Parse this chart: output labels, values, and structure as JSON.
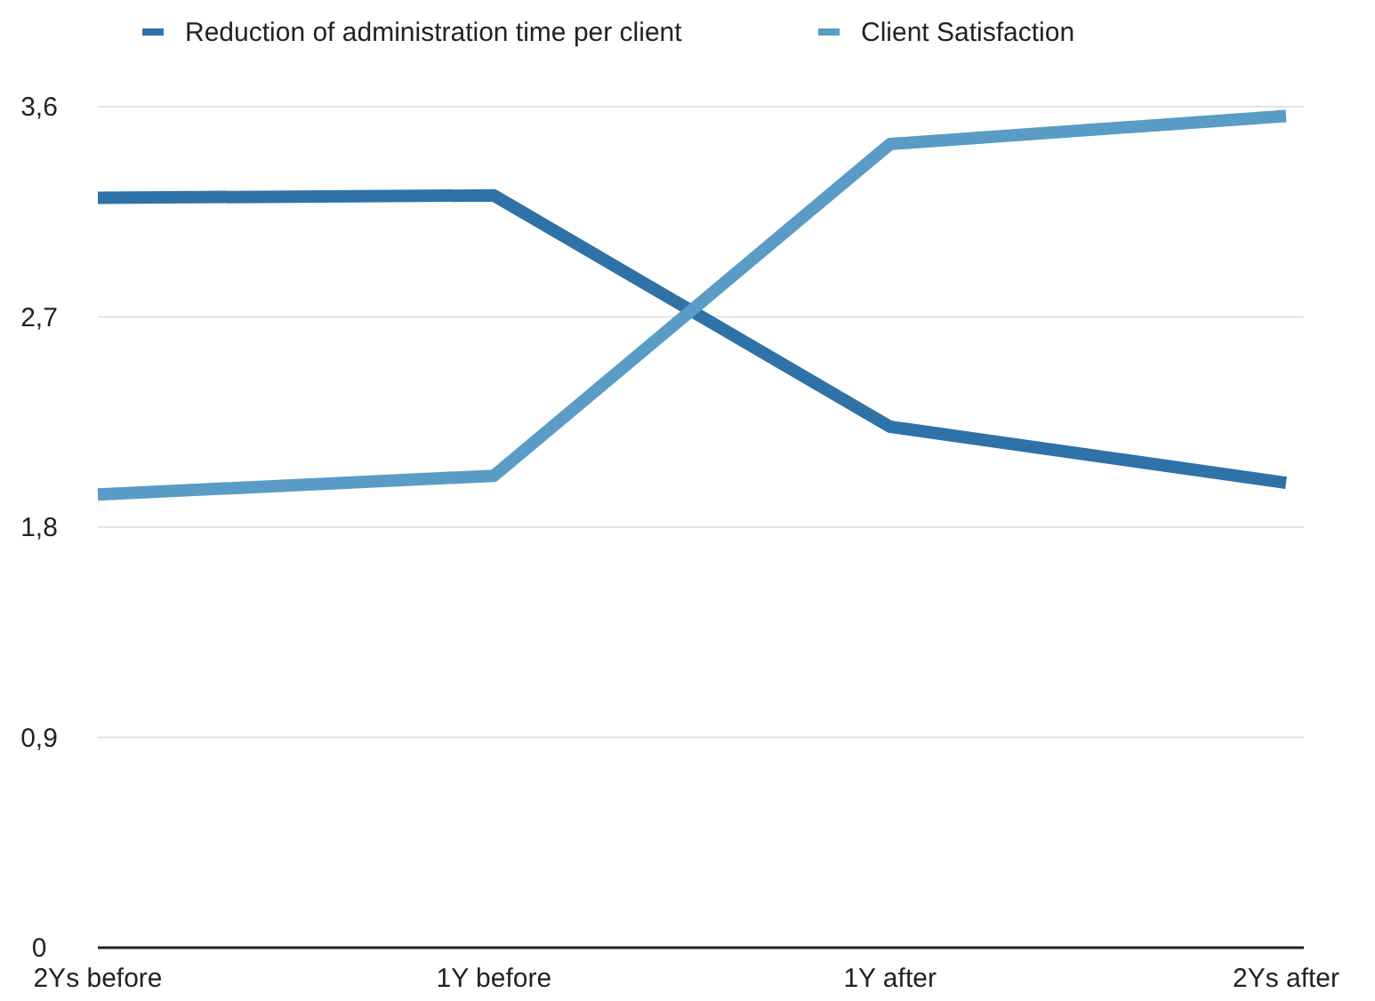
{
  "chart_data": {
    "type": "line",
    "categories": [
      "2Ys before",
      "1Y before",
      "1Y after",
      "2Ys after"
    ],
    "series": [
      {
        "name": "Reduction of administration time per client",
        "color": "#2f72a8",
        "values": [
          3.21,
          3.22,
          2.23,
          1.99
        ]
      },
      {
        "name": "Client Satisfaction",
        "color": "#5a9cc6",
        "values": [
          1.94,
          2.02,
          3.44,
          3.56
        ]
      }
    ],
    "ylim": [
      0,
      3.6
    ],
    "yticks": [
      0,
      {
        "value": 0.9,
        "label": "0,9"
      },
      {
        "value": 1.8,
        "label": "1,8"
      },
      {
        "value": 2.7,
        "label": "2,7"
      },
      {
        "value": 3.6,
        "label": "3,6"
      }
    ],
    "grid": "y",
    "legend": "top left",
    "line_style": "solid"
  }
}
